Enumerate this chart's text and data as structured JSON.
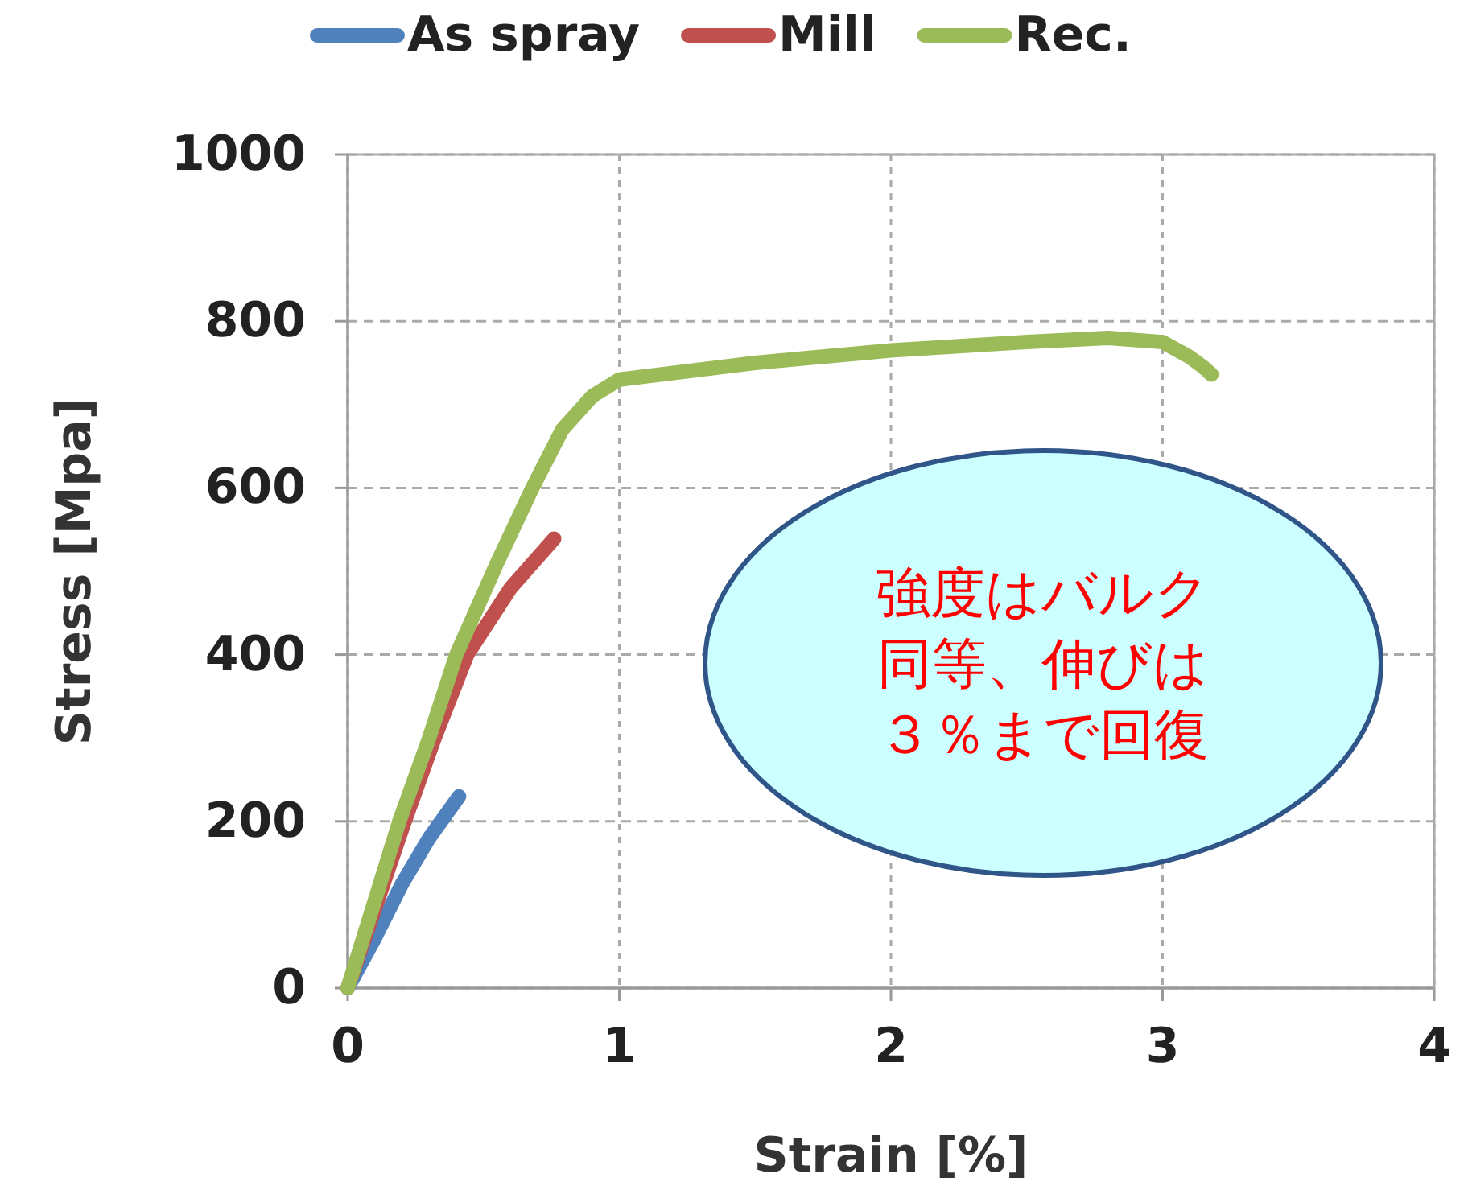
{
  "chart_data": {
    "type": "line",
    "xlabel": "Strain [%]",
    "ylabel": "Stress [Mpa]",
    "xlim": [
      0,
      4
    ],
    "xticks": [
      0,
      1,
      2,
      3,
      4
    ],
    "ylim": [
      0,
      1000
    ],
    "yticks": [
      0,
      200,
      400,
      600,
      800,
      1000
    ],
    "grid": true,
    "legend": "top",
    "marker": "none",
    "line_style": "solid",
    "series": [
      {
        "name": "As spray",
        "color": "#4f81bd",
        "x": [
          0,
          0.1,
          0.2,
          0.3,
          0.41
        ],
        "values": [
          0,
          60,
          125,
          180,
          230
        ]
      },
      {
        "name": "Mill",
        "color": "#c0504d",
        "x": [
          0,
          0.1,
          0.21,
          0.32,
          0.44,
          0.6,
          0.76
        ],
        "values": [
          0,
          95,
          200,
          300,
          400,
          480,
          539
        ]
      },
      {
        "name": "Rec.",
        "color": "#9bbb59",
        "x": [
          0,
          0.1,
          0.19,
          0.3,
          0.4,
          0.55,
          0.68,
          0.79,
          0.9,
          1.0,
          1.5,
          2.0,
          2.5,
          2.8,
          3.0,
          3.1,
          3.15,
          3.18
        ],
        "values": [
          0,
          105,
          200,
          300,
          400,
          510,
          600,
          670,
          710,
          730,
          750,
          765,
          775,
          780,
          775,
          757,
          745,
          736
        ]
      }
    ],
    "annotations": [
      "強度はバルク",
      "同等、伸びは",
      "３％まで回復"
    ]
  }
}
